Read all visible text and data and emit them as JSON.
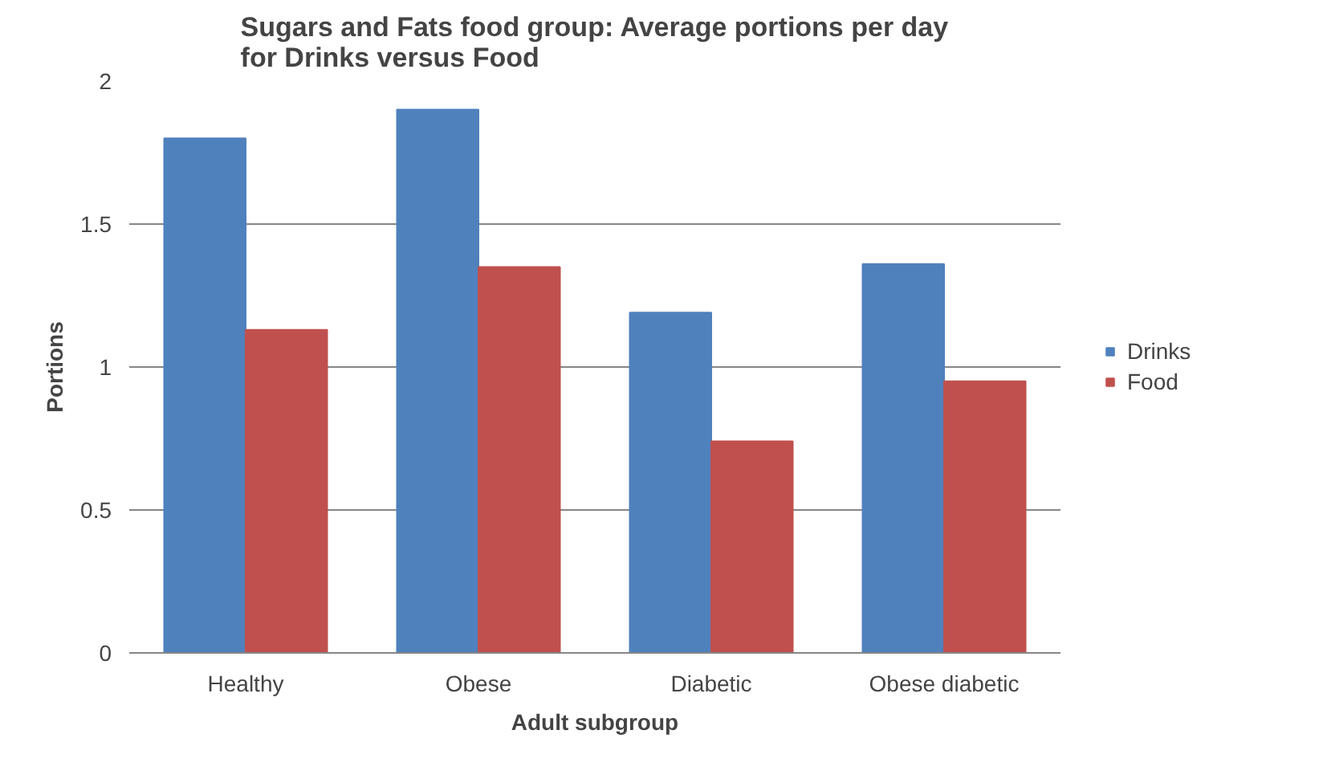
{
  "chart_data": {
    "type": "bar",
    "title": "Sugars and Fats food group: Average portions per day\nfor Drinks versus Food",
    "xlabel": "Adult subgroup",
    "ylabel": "Portions",
    "categories": [
      "Healthy",
      "Obese",
      "Diabetic",
      "Obese diabetic"
    ],
    "series": [
      {
        "name": "Drinks",
        "color": "#4f81bd",
        "values": [
          1.8,
          1.9,
          1.19,
          1.36
        ]
      },
      {
        "name": "Food",
        "color": "#c0504d",
        "values": [
          1.13,
          1.35,
          0.74,
          0.95
        ]
      }
    ],
    "ylim": [
      0,
      2
    ],
    "yticks": [
      0,
      0.5,
      1,
      1.5,
      2
    ],
    "grid": "y",
    "legend": "right"
  }
}
